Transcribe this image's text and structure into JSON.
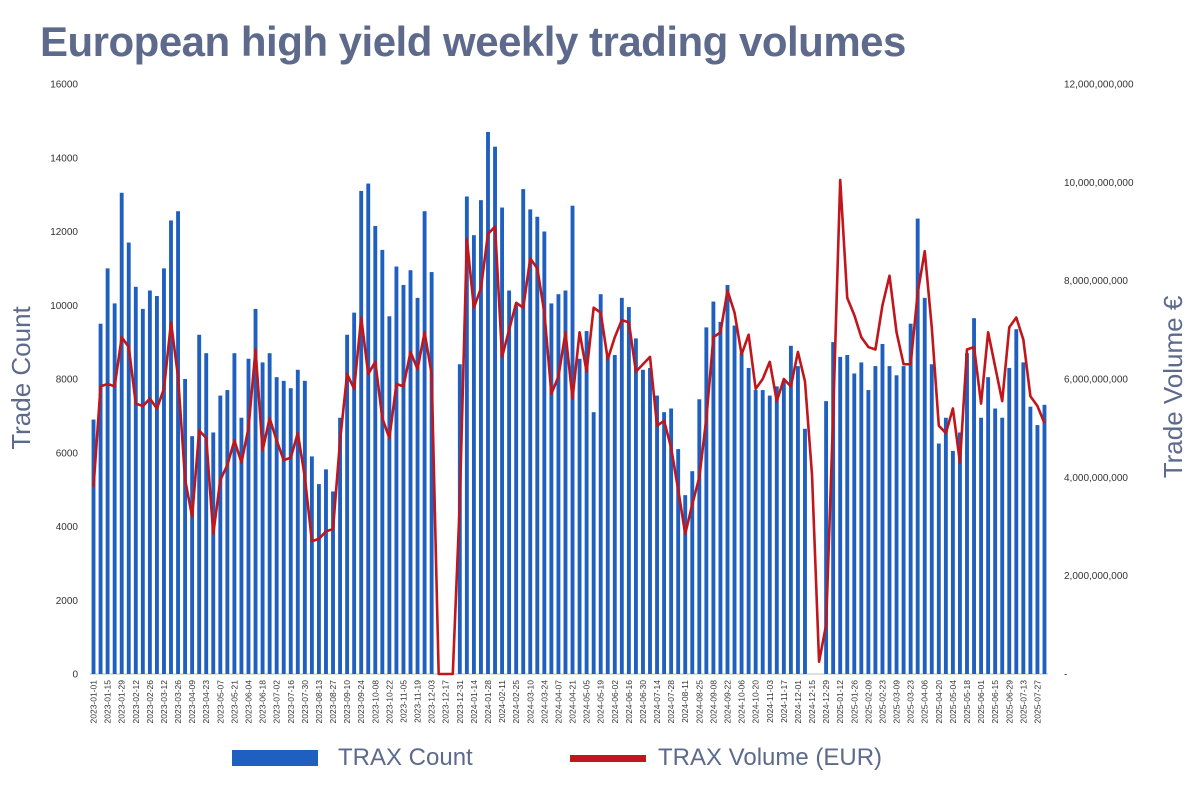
{
  "title": "European high yield weekly trading volumes",
  "chart_data": {
    "type": "bar+line",
    "title": "European high yield weekly trading volumes",
    "ylabel_left": "Trade Count",
    "ylabel_right": "Trade Volume €",
    "ylim_left": [
      0,
      16000
    ],
    "ylim_right": [
      0,
      12000000000
    ],
    "left_ticks": [
      "0",
      "2000",
      "4000",
      "6000",
      "8000",
      "10000",
      "12000",
      "14000",
      "16000"
    ],
    "right_ticks": [
      "-",
      "2,000,000,000",
      "4,000,000,000",
      "6,000,000,000",
      "8,000,000,000",
      "10,000,000,000",
      "12,000,000,000"
    ],
    "x_tick_labels": [
      "2023-01-01",
      "2023-01-15",
      "2023-01-29",
      "2023-02-12",
      "2023-02-26",
      "2023-03-12",
      "2023-03-26",
      "2023-04-09",
      "2023-04-23",
      "2023-05-07",
      "2023-05-21",
      "2023-06-04",
      "2023-06-18",
      "2023-07-02",
      "2023-07-16",
      "2023-07-30",
      "2023-08-13",
      "2023-08-27",
      "2023-09-10",
      "2023-09-24",
      "2023-10-08",
      "2023-10-22",
      "2023-11-05",
      "2023-11-19",
      "2023-12-03",
      "2023-12-17",
      "2023-12-31",
      "2024-01-14",
      "2024-01-28",
      "2024-02-11",
      "2024-02-25",
      "2024-03-10",
      "2024-03-24",
      "2024-04-07",
      "2024-04-21",
      "2024-05-05",
      "2024-05-19",
      "2024-06-02",
      "2024-06-16",
      "2024-06-30",
      "2024-07-14",
      "2024-07-28",
      "2024-08-11",
      "2024-08-25",
      "2024-09-08",
      "2024-09-22",
      "2024-10-06",
      "2024-10-20",
      "2024-11-03",
      "2024-11-17",
      "2024-12-01",
      "2024-12-15",
      "2024-12-29",
      "2025-01-12",
      "2025-01-26",
      "2025-02-09",
      "2025-02-23",
      "2025-03-09",
      "2025-03-23",
      "2025-04-06",
      "2025-04-20",
      "2025-05-04",
      "2025-05-18",
      "2025-06-01",
      "2025-06-15",
      "2025-06-29",
      "2025-07-13",
      "2025-07-27"
    ],
    "series": [
      {
        "name": "TRAX Count",
        "type": "bar",
        "axis": "left",
        "color": "#1f5fbf",
        "values": [
          6900,
          9500,
          11000,
          10050,
          13050,
          11700,
          10500,
          9900,
          10400,
          10250,
          11000,
          12300,
          12550,
          8000,
          6450,
          9200,
          8700,
          6550,
          7550,
          7700,
          8700,
          6950,
          8550,
          9900,
          8450,
          8700,
          8050,
          7950,
          7750,
          8250,
          7950,
          5900,
          5150,
          5550,
          4950,
          6950,
          9200,
          9800,
          13100,
          13300,
          12150,
          11500,
          9700,
          11050,
          10550,
          10950,
          10200,
          12550,
          10900,
          0,
          0,
          0,
          8400,
          12950,
          11900,
          12850,
          14700,
          14300,
          12650,
          10400,
          10000,
          13150,
          12600,
          12400,
          12000,
          10050,
          10300,
          10400,
          12700,
          8550,
          9300,
          7100,
          10300,
          8650,
          8650,
          10200,
          9950,
          9100,
          8250,
          8300,
          7550,
          7100,
          7200,
          6100,
          4850,
          5500,
          7450,
          9400,
          10100,
          9550,
          10550,
          9450,
          8700,
          8300,
          7700,
          7700,
          7550,
          7800,
          7950,
          8900,
          8350,
          6650,
          0,
          0,
          7400,
          9000,
          8600,
          8650,
          8150,
          8450,
          7700,
          8350,
          8950,
          8350,
          8100,
          8350,
          9500,
          12350,
          10200,
          8400,
          6250,
          6950,
          6050,
          6550,
          8700,
          9650,
          6950,
          8050,
          7200,
          6950,
          8300,
          9350,
          8450,
          7250,
          6750,
          7300
        ]
      },
      {
        "name": "TRAX Volume (EUR)",
        "type": "line",
        "axis": "right",
        "color": "#c0161c",
        "values": [
          3800000000,
          5850000000,
          5900000000,
          5850000000,
          6850000000,
          6650000000,
          5500000000,
          5450000000,
          5600000000,
          5400000000,
          5800000000,
          7150000000,
          6050000000,
          3950000000,
          3200000000,
          4950000000,
          4800000000,
          2850000000,
          3950000000,
          4250000000,
          4750000000,
          4300000000,
          5000000000,
          6600000000,
          4550000000,
          5200000000,
          4750000000,
          4350000000,
          4400000000,
          4900000000,
          4000000000,
          2700000000,
          2750000000,
          2900000000,
          2950000000,
          4750000000,
          6100000000,
          5800000000,
          7250000000,
          6100000000,
          6350000000,
          5200000000,
          4800000000,
          5900000000,
          5850000000,
          6550000000,
          6200000000,
          6950000000,
          6100000000,
          0,
          0,
          0,
          3500000000,
          8850000000,
          7450000000,
          7850000000,
          8950000000,
          9100000000,
          6450000000,
          7000000000,
          7550000000,
          7450000000,
          8450000000,
          8250000000,
          7350000000,
          5700000000,
          6050000000,
          6950000000,
          5600000000,
          6950000000,
          6150000000,
          7450000000,
          7350000000,
          6400000000,
          6850000000,
          7200000000,
          7150000000,
          6150000000,
          6300000000,
          6450000000,
          5050000000,
          5150000000,
          4600000000,
          3750000000,
          2850000000,
          3450000000,
          4000000000,
          5200000000,
          6850000000,
          6950000000,
          7800000000,
          7350000000,
          6500000000,
          6900000000,
          5800000000,
          6000000000,
          6350000000,
          5550000000,
          6000000000,
          5850000000,
          6550000000,
          5950000000,
          4050000000,
          250000000,
          1000000000,
          5250000000,
          10050000000,
          7650000000,
          7300000000,
          6850000000,
          6650000000,
          6600000000,
          7500000000,
          8100000000,
          6950000000,
          6300000000,
          6300000000,
          7750000000,
          8600000000,
          7050000000,
          5050000000,
          4900000000,
          5400000000,
          4300000000,
          6600000000,
          6650000000,
          5500000000,
          6950000000,
          6250000000,
          5550000000,
          7050000000,
          7250000000,
          6800000000,
          5650000000,
          5450000000,
          5100000000
        ]
      }
    ],
    "legend": [
      {
        "label": "TRAX Count",
        "color": "#1f5fbf"
      },
      {
        "label": "TRAX Volume (EUR)",
        "color": "#c0161c"
      }
    ],
    "legend_position": "bottom-center"
  }
}
